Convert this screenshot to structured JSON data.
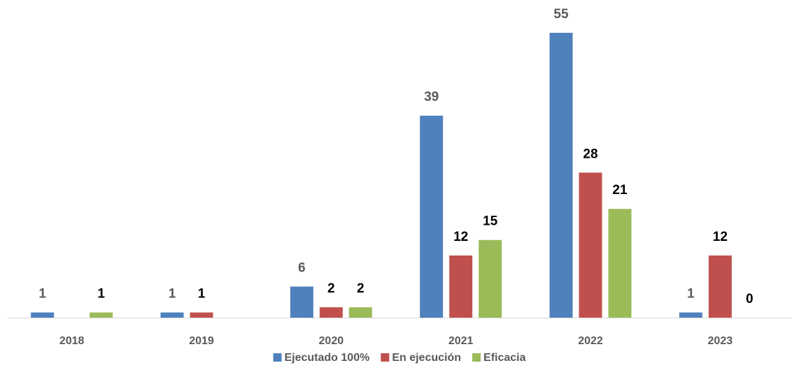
{
  "chart_data": {
    "type": "bar",
    "categories": [
      "2018",
      "2019",
      "2020",
      "2021",
      "2022",
      "2023"
    ],
    "series": [
      {
        "name": "Ejecutado 100%",
        "color": "#4f81bd",
        "label_color": "#595959",
        "values": [
          1,
          1,
          6,
          39,
          55,
          1
        ]
      },
      {
        "name": "En ejecución",
        "color": "#c0504d",
        "label_color": "#000000",
        "values": [
          null,
          1,
          2,
          12,
          28,
          12
        ]
      },
      {
        "name": "Eficacia",
        "color": "#9bbb59",
        "label_color": "#000000",
        "values": [
          1,
          null,
          2,
          15,
          21,
          0
        ]
      }
    ],
    "legend": "bottom"
  }
}
